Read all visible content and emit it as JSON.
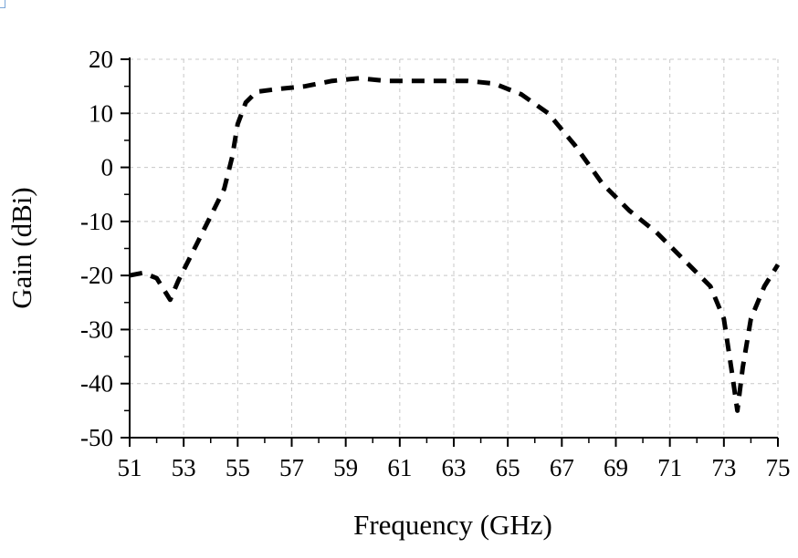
{
  "chart_data": {
    "type": "line",
    "title": "",
    "xlabel": "Frequency (GHz)",
    "ylabel": "Gain (dBi)",
    "xlim": [
      51,
      75
    ],
    "ylim": [
      -50,
      20
    ],
    "x_ticks": [
      51,
      53,
      55,
      57,
      59,
      61,
      63,
      65,
      67,
      69,
      71,
      73,
      75
    ],
    "x_tick_labels": [
      "51",
      "53",
      "55",
      "57",
      "59",
      "61",
      "63",
      "65",
      "67",
      "69",
      "71",
      "73",
      "75"
    ],
    "y_ticks": [
      20,
      10,
      0,
      -10,
      -20,
      -30,
      -40,
      -50
    ],
    "y_tick_labels": [
      "20",
      "10",
      "0",
      "-10",
      "-20",
      "-30",
      "-40",
      "-50"
    ],
    "grid": true,
    "legend": "none",
    "series": [
      {
        "color": "#000000",
        "line_style": "dashed",
        "x": [
          51,
          51.5,
          52,
          52.5,
          52.8,
          53.5,
          54,
          54.5,
          54.8,
          55,
          55.3,
          55.7,
          56.5,
          57.5,
          58.5,
          59.5,
          60.5,
          61.5,
          62.5,
          63.5,
          64.5,
          65.5,
          66.5,
          67.5,
          68.5,
          69.5,
          70.5,
          71.5,
          72.5,
          73,
          73.3,
          73.5,
          73.7,
          74,
          74.5,
          75
        ],
        "y": [
          -20,
          -19.5,
          -20.5,
          -24.5,
          -21,
          -14,
          -9,
          -4,
          2,
          8,
          12,
          14,
          14.5,
          15,
          16,
          16.5,
          16,
          16,
          16,
          16,
          15.5,
          13.5,
          10,
          4,
          -3,
          -8,
          -12,
          -17,
          -22,
          -28,
          -38,
          -45,
          -37,
          -28,
          -22,
          -18
        ]
      }
    ]
  }
}
